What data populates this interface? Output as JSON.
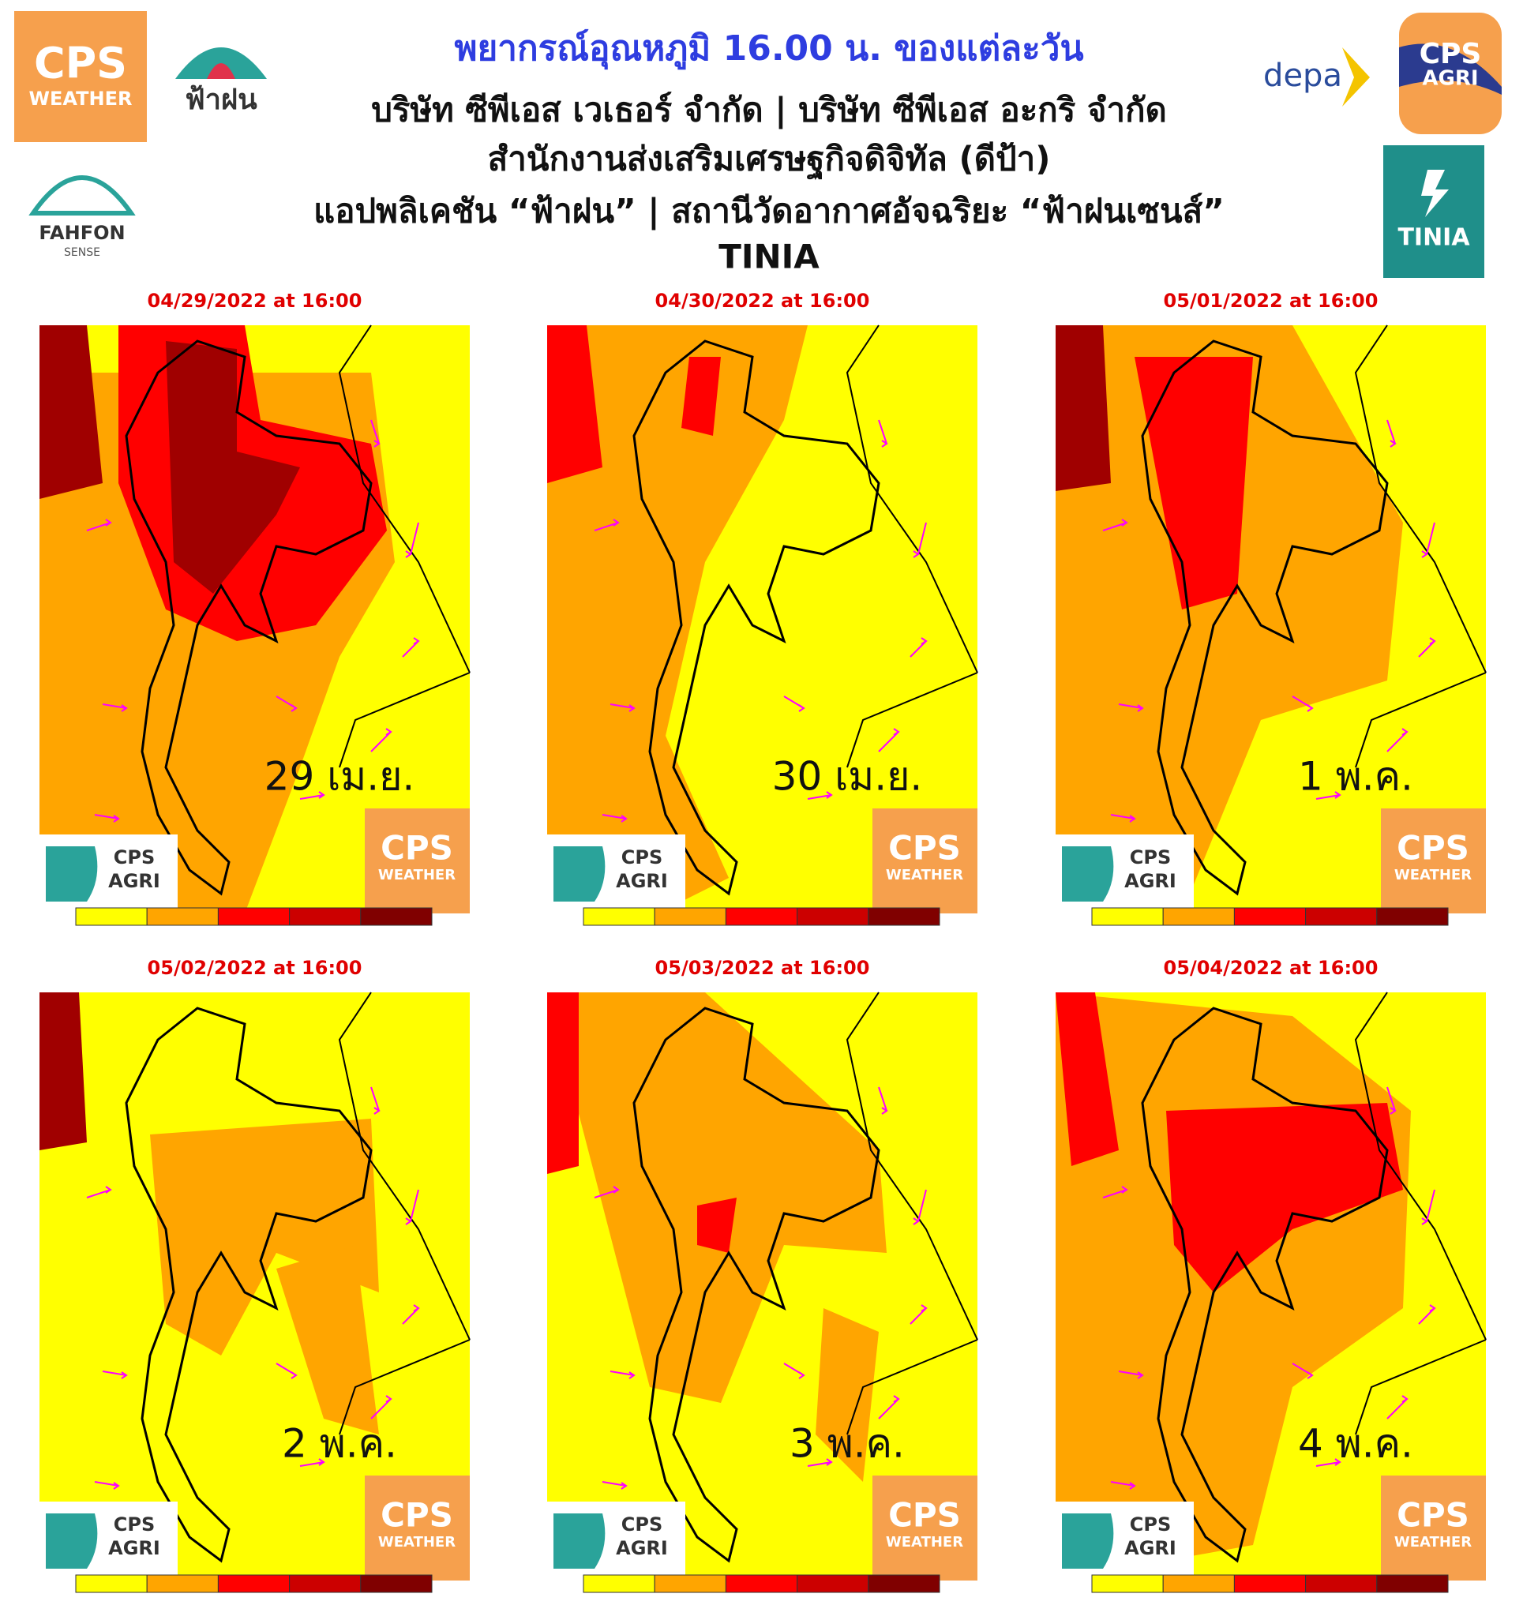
{
  "header": {
    "title": "พยากรณ์อุณหภูมิ 16.00 น. ของแต่ละวัน",
    "lines": [
      "บริษัท ซีพีเอส เวเธอร์ จำกัด | บริษัท ซีพีเอส อะกริ จำกัด",
      "สำนักงานส่งเสริมเศรษฐกิจดิจิทัล (ดีป้า)",
      "แอปพลิเคชัน “ฟ้าฝน” | สถานีวัดอากาศอัจฉริยะ “ฟ้าฝนเซนส์”",
      "TINIA"
    ]
  },
  "logos": {
    "cps_weather": [
      "CPS",
      "WEATHER"
    ],
    "fahfon": "ฟ้าฝน",
    "fahfon_sense": [
      "FAHFON",
      "SENSE"
    ],
    "depa": "depa",
    "cps_agri": [
      "CPS",
      "AGRI"
    ],
    "tinia": "TINIA"
  },
  "panels": [
    {
      "date": "04/29/2022 at 16:00",
      "day": "29 เม.ย."
    },
    {
      "date": "04/30/2022 at 16:00",
      "day": "30 เม.ย."
    },
    {
      "date": "05/01/2022 at 16:00",
      "day": "1 พ.ค."
    },
    {
      "date": "05/02/2022 at 16:00",
      "day": "2 พ.ค."
    },
    {
      "date": "05/03/2022 at 16:00",
      "day": "3 พ.ค."
    },
    {
      "date": "05/04/2022 at 16:00",
      "day": "4 พ.ค."
    }
  ],
  "colorbar": [
    "#ffff00",
    "#ffa500",
    "#ff0000",
    "#cc0000",
    "#800000"
  ]
}
